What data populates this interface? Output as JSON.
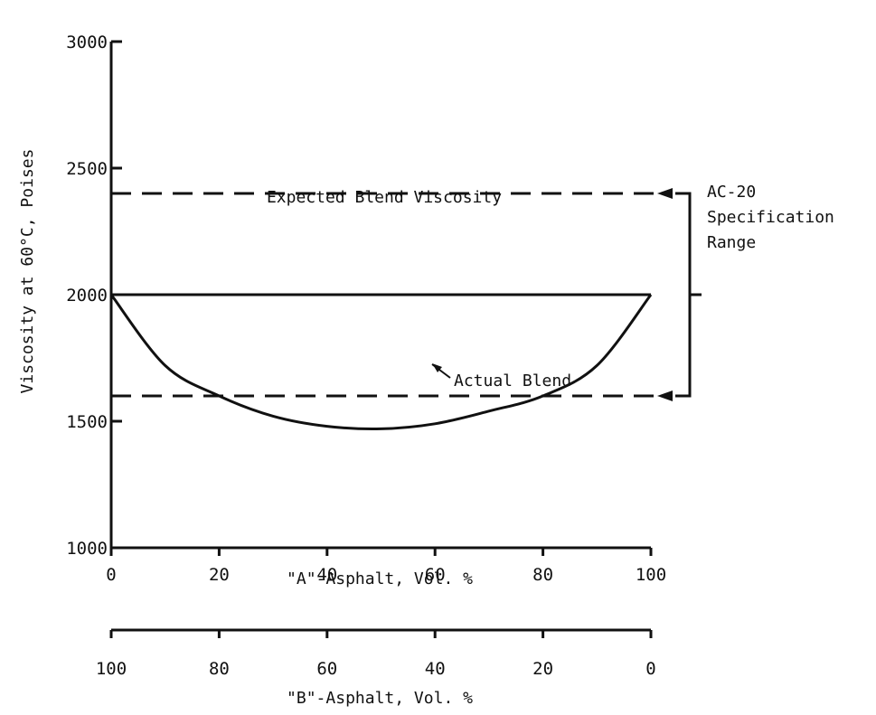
{
  "chart_data": {
    "type": "line",
    "xlabel": "\"A\"-Asphalt, Vol. %",
    "x2label": "\"B\"-Asphalt, Vol. %",
    "ylabel": "Viscosity at 60°C, Poises",
    "xlim": [
      0,
      100
    ],
    "ylim": [
      1000,
      3000
    ],
    "x_ticks": [
      "0",
      "20",
      "40",
      "60",
      "80",
      "100"
    ],
    "x2_ticks": [
      "100",
      "80",
      "60",
      "40",
      "20",
      "0"
    ],
    "y_ticks": [
      "1000",
      "1500",
      "2000",
      "2500",
      "3000"
    ],
    "grid": false,
    "series": [
      {
        "name": "Expected Blend Viscosity",
        "style": "solid",
        "x": [
          0,
          100
        ],
        "y": [
          2000,
          2000
        ]
      },
      {
        "name": "Actual Blend",
        "style": "solid",
        "x": [
          0,
          10,
          20,
          30,
          40,
          50,
          60,
          70,
          80,
          90,
          100
        ],
        "y": [
          2000,
          1720,
          1600,
          1520,
          1480,
          1470,
          1490,
          1540,
          1600,
          1720,
          2000
        ]
      }
    ],
    "reference_lines": [
      {
        "y": 2400,
        "style": "dashed"
      },
      {
        "y": 1600,
        "style": "dashed"
      }
    ],
    "range_annotation": {
      "label_lines": [
        "AC-20",
        "Specification",
        "Range"
      ],
      "from": 1600,
      "to": 2400
    }
  }
}
